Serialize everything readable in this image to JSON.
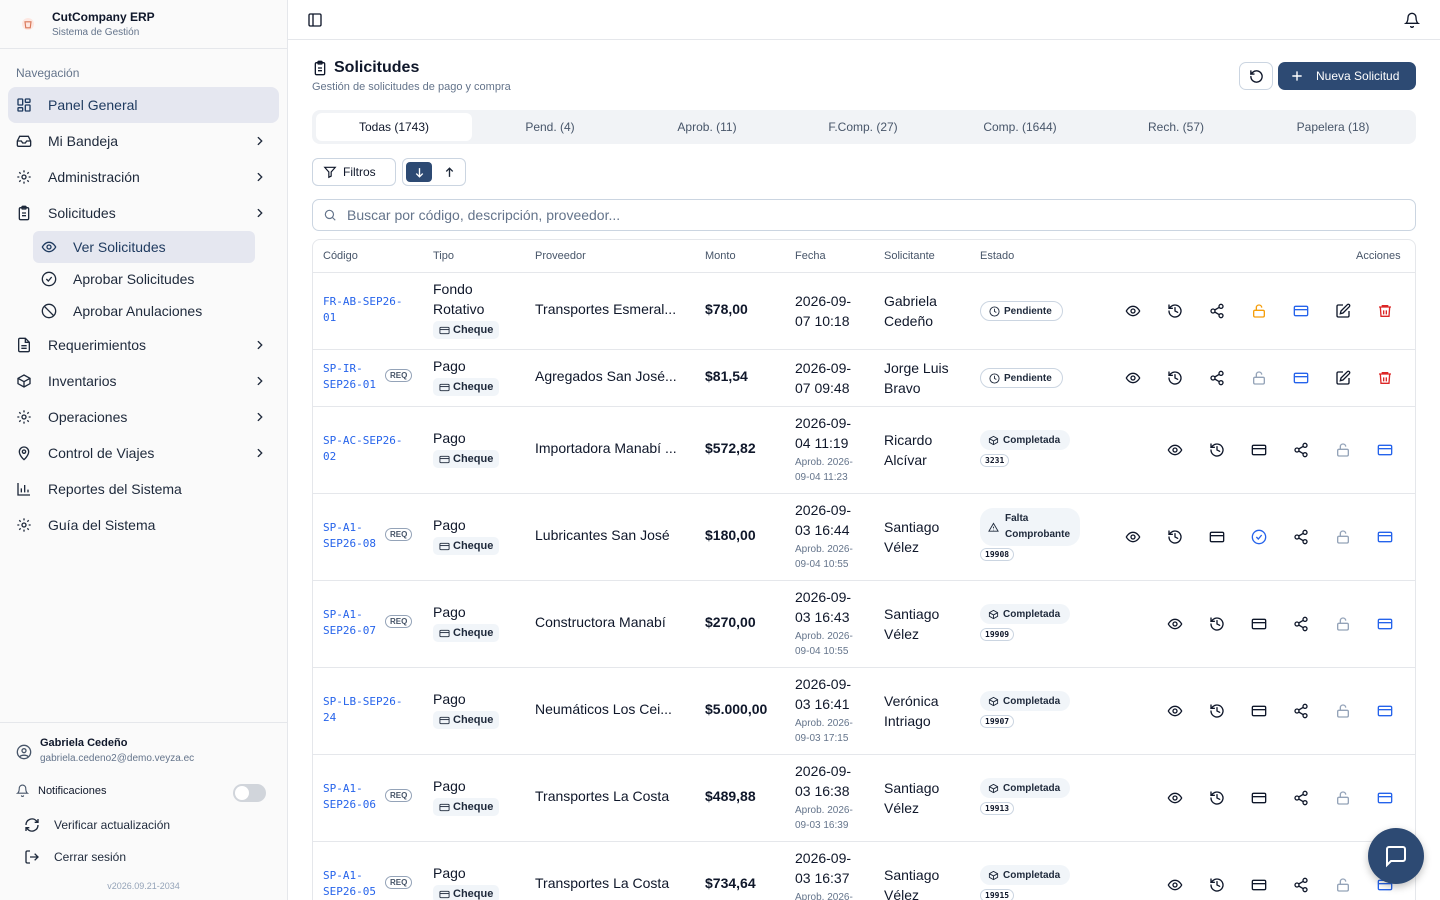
{
  "app": {
    "title": "CutCompany ERP",
    "subtitle": "Sistema de Gestión"
  },
  "nav": {
    "heading": "Navegación",
    "items": [
      {
        "label": "Panel General",
        "icon": "dashboard-icon"
      },
      {
        "label": "Mi Bandeja",
        "icon": "inbox-icon"
      },
      {
        "label": "Administración",
        "icon": "gear-icon"
      },
      {
        "label": "Solicitudes",
        "icon": "clipboard-icon"
      },
      {
        "label": "Requerimientos",
        "icon": "document-icon"
      },
      {
        "label": "Inventarios",
        "icon": "package-icon"
      },
      {
        "label": "Operaciones",
        "icon": "gear-icon"
      },
      {
        "label": "Control de Viajes",
        "icon": "map-pin-icon"
      },
      {
        "label": "Reportes del Sistema",
        "icon": "bar-chart-icon"
      },
      {
        "label": "Guía del Sistema",
        "icon": "gear-icon"
      }
    ],
    "sub_items": [
      {
        "label": "Ver Solicitudes",
        "icon": "eye-icon"
      },
      {
        "label": "Aprobar Solicitudes",
        "icon": "check-circle-icon"
      },
      {
        "label": "Aprobar Anulaciones",
        "icon": "ban-icon"
      }
    ]
  },
  "user": {
    "name": "Gabriela Cedeño",
    "email": "gabriela.cedeno2@demo.veyza.ec"
  },
  "footer": {
    "notifications_label": "Notificaciones",
    "notifications_on": false,
    "check_update": "Verificar actualización",
    "logout": "Cerrar sesión",
    "version": "v2026.09.21-2034"
  },
  "page": {
    "title": "Solicitudes",
    "subtitle": "Gestión de solicitudes de pago y compra",
    "new_button": "Nueva Solicitud"
  },
  "tabs": [
    "Todas (1743)",
    "Pend. (4)",
    "Aprob. (11)",
    "F.Comp. (27)",
    "Comp. (1644)",
    "Rech. (57)",
    "Papelera (18)"
  ],
  "filters_label": "Filtros",
  "search": {
    "placeholder": "Buscar por código, descripción, proveedor..."
  },
  "table": {
    "headers": {
      "code": "Código",
      "type": "Tipo",
      "provider": "Proveedor",
      "amount": "Monto",
      "date": "Fecha",
      "requester": "Solicitante",
      "status": "Estado",
      "actions": "Acciones"
    },
    "rows": [
      {
        "code1": "FR-AB-SEP26-",
        "code2": "01",
        "req": "",
        "type1": "Fondo",
        "type2": "Rotativo",
        "payment": "Cheque",
        "provider": "Transportes Esmeral...",
        "amount": "$78,00",
        "date1": "2026-09-",
        "date2": "07 10:18",
        "aprob1": "",
        "aprob2": "",
        "req1": "Gabriela",
        "req2": "Cedeño",
        "status1": "Pendiente",
        "status2": "",
        "num": ""
      },
      {
        "code1": "SP-IR-",
        "code2": "SEP26-01",
        "req": "REQ",
        "type1": "Pago",
        "type2": "",
        "payment": "Cheque",
        "provider": "Agregados San José...",
        "amount": "$81,54",
        "date1": "2026-09-",
        "date2": "07 09:48",
        "aprob1": "",
        "aprob2": "",
        "req1": "Jorge Luis",
        "req2": "Bravo",
        "status1": "Pendiente",
        "status2": "",
        "num": ""
      },
      {
        "code1": "SP-AC-SEP26-",
        "code2": "02",
        "req": "",
        "type1": "Pago",
        "type2": "",
        "payment": "Cheque",
        "provider": "Importadora Manabí ...",
        "amount": "$572,82",
        "date1": "2026-09-",
        "date2": "04 11:19",
        "aprob1": "Aprob. 2026-",
        "aprob2": "09-04 11:23",
        "req1": "Ricardo",
        "req2": "Alcívar",
        "status1": "Completada",
        "status2": "",
        "num": "3231"
      },
      {
        "code1": "SP-A1-",
        "code2": "SEP26-08",
        "req": "REQ",
        "type1": "Pago",
        "type2": "",
        "payment": "Cheque",
        "provider": "Lubricantes San José",
        "amount": "$180,00",
        "date1": "2026-09-",
        "date2": "03 16:44",
        "aprob1": "Aprob. 2026-",
        "aprob2": "09-04 10:55",
        "req1": "Santiago",
        "req2": "Vélez",
        "status1": "Falta",
        "status2": "Comprobante",
        "num": "19908"
      },
      {
        "code1": "SP-A1-",
        "code2": "SEP26-07",
        "req": "REQ",
        "type1": "Pago",
        "type2": "",
        "payment": "Cheque",
        "provider": "Constructora Manabí",
        "amount": "$270,00",
        "date1": "2026-09-",
        "date2": "03 16:43",
        "aprob1": "Aprob. 2026-",
        "aprob2": "09-04 10:55",
        "req1": "Santiago",
        "req2": "Vélez",
        "status1": "Completada",
        "status2": "",
        "num": "19909"
      },
      {
        "code1": "SP-LB-SEP26-",
        "code2": "24",
        "req": "",
        "type1": "Pago",
        "type2": "",
        "payment": "Cheque",
        "provider": "Neumáticos Los Cei...",
        "amount": "$5.000,00",
        "date1": "2026-09-",
        "date2": "03 16:41",
        "aprob1": "Aprob. 2026-",
        "aprob2": "09-03 17:15",
        "req1": "Verónica",
        "req2": "Intriago",
        "status1": "Completada",
        "status2": "",
        "num": "19907"
      },
      {
        "code1": "SP-A1-",
        "code2": "SEP26-06",
        "req": "REQ",
        "type1": "Pago",
        "type2": "",
        "payment": "Cheque",
        "provider": "Transportes La Costa",
        "amount": "$489,88",
        "date1": "2026-09-",
        "date2": "03 16:38",
        "aprob1": "Aprob. 2026-",
        "aprob2": "09-03 16:39",
        "req1": "Santiago",
        "req2": "Vélez",
        "status1": "Completada",
        "status2": "",
        "num": "19913"
      },
      {
        "code1": "SP-A1-",
        "code2": "SEP26-05",
        "req": "REQ",
        "type1": "Pago",
        "type2": "",
        "payment": "Cheque",
        "provider": "Transportes La Costa",
        "amount": "$734,64",
        "date1": "2026-09-",
        "date2": "03 16:37",
        "aprob1": "Aprob. 2026-",
        "aprob2": "",
        "req1": "Santiago",
        "req2": "Vélez",
        "status1": "Completada",
        "status2": "",
        "num": "19915"
      }
    ]
  },
  "colors": {
    "brand": "#2d4a73",
    "link": "#2563eb",
    "danger": "#dc2626",
    "warning": "#f59e0b"
  }
}
